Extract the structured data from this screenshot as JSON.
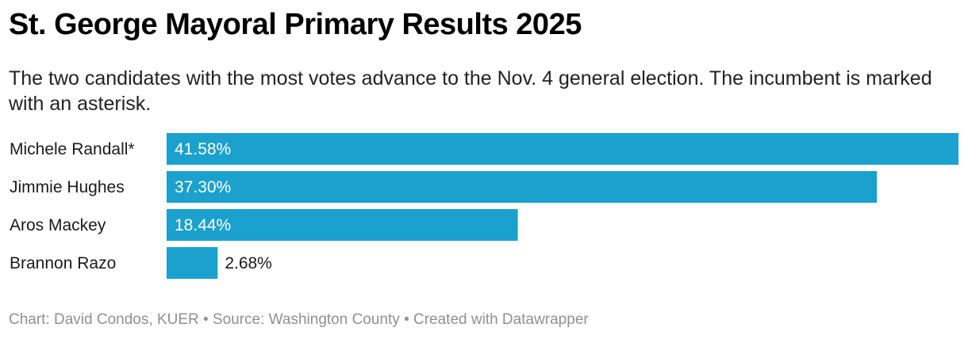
{
  "title": "St. George Mayoral Primary Results 2025",
  "subtitle": "The two candidates with the most votes advance to the Nov. 4 general election. The incumbent is marked with an asterisk.",
  "chart_data": {
    "type": "bar",
    "orientation": "horizontal",
    "categories": [
      "Michele Randall*",
      "Jimmie Hughes",
      "Aros Mackey",
      "Brannon Razo"
    ],
    "values": [
      41.58,
      37.3,
      18.44,
      2.68
    ],
    "value_labels": [
      "41.58%",
      "37.30%",
      "18.44%",
      "2.68%"
    ],
    "unit": "%",
    "bar_color": "#1aa1cd",
    "xlim": [
      0,
      41.58
    ],
    "grid": false,
    "legend": "none"
  },
  "footer": "Chart: David Condos, KUER • Source: Washington County • Created with Datawrapper"
}
